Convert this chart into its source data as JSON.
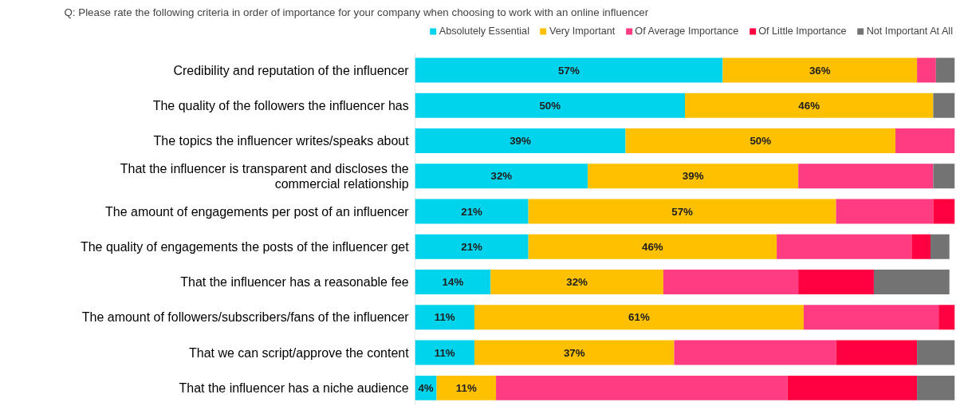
{
  "chart_data": {
    "type": "bar",
    "orientation": "horizontal",
    "stacked": true,
    "title": "Q: Please rate the following criteria in order of importance for your company when choosing to work with an online influencer",
    "categories": [
      "Credibility and reputation of the influencer",
      "The quality of the followers the influencer has",
      "The topics the influencer writes/speaks about",
      "That the influencer is transparent and discloses the commercial relationship",
      "The amount of engagements per post of an influencer",
      "The quality of engagements the posts of the influencer get",
      "That the influencer has a reasonable fee",
      "The amount of followers/subscribers/fans of the influencer",
      "That we can script/approve the content",
      "That the influencer has a niche audience"
    ],
    "xlim": [
      0,
      100
    ],
    "tick_labels": "y",
    "grid": false,
    "legend": "top",
    "series": [
      {
        "name": "Absolutely Essential",
        "color": "#00d4ec",
        "values": [
          57,
          50,
          39,
          32,
          21,
          21,
          14,
          11,
          11,
          4
        ],
        "value_labels": [
          "57%",
          "50%",
          "39%",
          "32%",
          "21%",
          "21%",
          "14%",
          "11%",
          "11%",
          "4%"
        ]
      },
      {
        "name": "Very Important",
        "color": "#ffc000",
        "values": [
          36,
          46,
          50,
          39,
          57,
          46,
          32,
          61,
          37,
          11
        ],
        "value_labels": [
          "36%",
          "46%",
          "50%",
          "39%",
          "57%",
          "46%",
          "32%",
          "61%",
          "37%",
          "11%"
        ]
      },
      {
        "name": "Of Average Importance",
        "color": "#ff3c82",
        "values": [
          3.5,
          0,
          11,
          25,
          18,
          25,
          25,
          25,
          30,
          54
        ]
      },
      {
        "name": "Of Little Importance",
        "color": "#ff0040",
        "values": [
          0,
          0,
          0,
          0,
          4,
          3.5,
          14,
          3,
          15,
          24
        ]
      },
      {
        "name": "Not Important At All",
        "color": "#737373",
        "values": [
          3.5,
          4,
          0,
          4,
          0,
          3.5,
          14,
          0,
          7,
          7
        ]
      }
    ]
  }
}
